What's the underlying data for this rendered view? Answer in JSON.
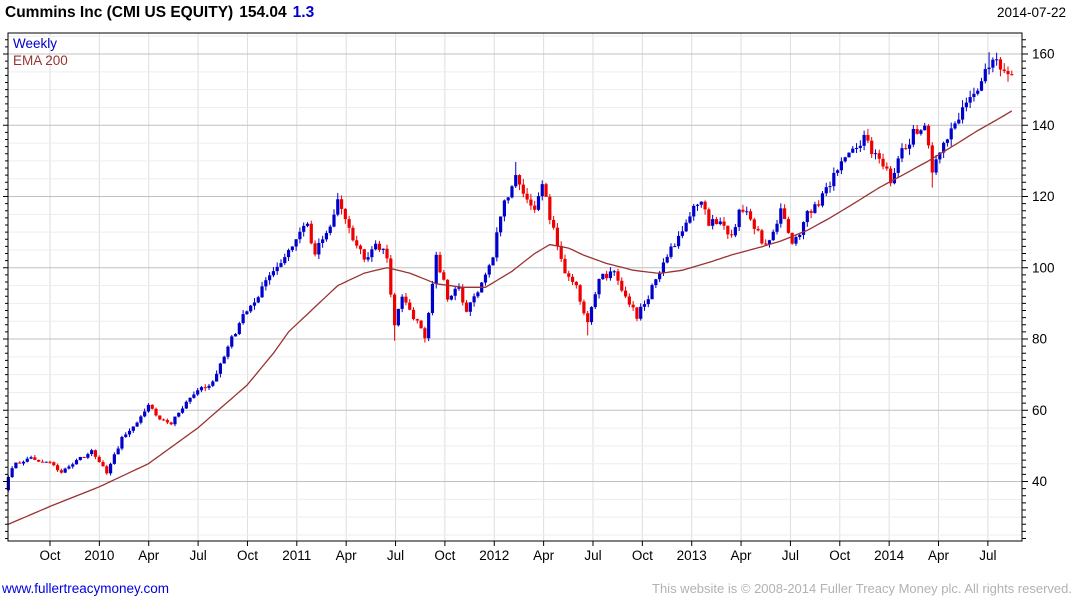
{
  "header": {
    "title": "Cummins Inc (CMI US EQUITY)",
    "price": "154.04",
    "change": "1.3",
    "date": "2014-07-22"
  },
  "legend": {
    "interval_label": "Weekly",
    "overlay_label": "EMA 200"
  },
  "footer": {
    "website": "www.fullertreacymoney.com",
    "copyright": "This website is © 2008-2014 Fuller Treacy Money plc. All rights reserved."
  },
  "colors": {
    "up_candle": "#0000cc",
    "down_candle": "#ee0000",
    "ema_line": "#993333",
    "grid_minor": "#ededed",
    "grid_major": "#c0c0c0",
    "grid_vertical": "#dedede",
    "axis": "#000000",
    "change_text": "#0000cc",
    "link": "#0000dd",
    "copyright_text": "#b2b2b2"
  },
  "chart_data": {
    "type": "candlestick",
    "interval": "Weekly",
    "overlay": "EMA 200",
    "title": "Cummins Inc (CMI US EQUITY)",
    "last_close": 154.04,
    "net_change": 1.3,
    "as_of_date": "2014-07-22",
    "x_tick_labels": [
      "Oct",
      "2010",
      "Apr",
      "Jul",
      "Oct",
      "2011",
      "Apr",
      "Jul",
      "Oct",
      "2012",
      "Apr",
      "Jul",
      "Oct",
      "2013",
      "Apr",
      "Jul",
      "Oct",
      "2014",
      "Apr",
      "Jul"
    ],
    "x_first_tick_week": 11,
    "x_weeks_per_tick": 13.036,
    "weeks_total": 266,
    "y_ticks": [
      40,
      60,
      80,
      100,
      120,
      140,
      160
    ],
    "y_minor_step": 5,
    "y_range_visible": [
      23,
      166
    ],
    "close_anchors": [
      [
        0,
        41.5
      ],
      [
        2,
        45
      ],
      [
        6,
        46.5
      ],
      [
        11,
        45.5
      ],
      [
        14,
        42.5
      ],
      [
        19,
        46.5
      ],
      [
        22,
        48.5
      ],
      [
        26,
        42.5
      ],
      [
        30,
        52
      ],
      [
        34,
        57
      ],
      [
        37,
        62
      ],
      [
        39,
        58
      ],
      [
        43,
        56.5
      ],
      [
        46,
        61
      ],
      [
        50,
        65
      ],
      [
        54,
        68
      ],
      [
        58,
        78
      ],
      [
        63,
        88
      ],
      [
        67,
        94
      ],
      [
        71,
        100
      ],
      [
        76,
        108
      ],
      [
        79,
        112
      ],
      [
        81,
        104
      ],
      [
        84,
        110
      ],
      [
        87,
        118.5
      ],
      [
        90,
        110
      ],
      [
        94,
        102
      ],
      [
        97,
        107
      ],
      [
        100,
        103
      ],
      [
        102,
        84
      ],
      [
        104,
        91
      ],
      [
        107,
        86
      ],
      [
        110,
        81
      ],
      [
        113,
        103
      ],
      [
        116,
        92
      ],
      [
        119,
        94
      ],
      [
        121,
        87.5
      ],
      [
        124,
        93
      ],
      [
        128,
        104
      ],
      [
        131,
        118
      ],
      [
        134,
        125
      ],
      [
        136,
        120
      ],
      [
        139,
        117
      ],
      [
        141,
        123
      ],
      [
        144,
        110
      ],
      [
        147,
        98
      ],
      [
        150,
        94
      ],
      [
        153,
        85
      ],
      [
        156,
        97
      ],
      [
        160,
        99
      ],
      [
        163,
        92
      ],
      [
        166,
        86
      ],
      [
        169,
        92
      ],
      [
        172,
        99
      ],
      [
        176,
        107
      ],
      [
        180,
        115
      ],
      [
        183,
        118
      ],
      [
        185,
        112
      ],
      [
        188,
        114
      ],
      [
        191,
        109
      ],
      [
        193,
        115.5
      ],
      [
        196,
        114
      ],
      [
        199,
        107
      ],
      [
        202,
        109
      ],
      [
        204,
        117
      ],
      [
        207,
        106
      ],
      [
        211,
        115
      ],
      [
        215,
        120
      ],
      [
        218,
        126
      ],
      [
        222,
        131
      ],
      [
        226,
        136
      ],
      [
        230,
        131
      ],
      [
        233,
        125
      ],
      [
        236,
        132
      ],
      [
        239,
        138
      ],
      [
        242,
        140
      ],
      [
        244,
        126
      ],
      [
        247,
        136
      ],
      [
        250,
        140
      ],
      [
        253,
        145
      ],
      [
        256,
        150
      ],
      [
        259,
        158
      ],
      [
        262,
        156
      ],
      [
        264,
        153.5
      ],
      [
        265,
        154.04
      ]
    ],
    "ema_anchors": [
      [
        0,
        28
      ],
      [
        11,
        33
      ],
      [
        24,
        38.5
      ],
      [
        37,
        45
      ],
      [
        50,
        55
      ],
      [
        63,
        67
      ],
      [
        70,
        76
      ],
      [
        74,
        82
      ],
      [
        80,
        88
      ],
      [
        87,
        95
      ],
      [
        94,
        98.5
      ],
      [
        100,
        100
      ],
      [
        106,
        98.5
      ],
      [
        113,
        95.5
      ],
      [
        120,
        94.5
      ],
      [
        126,
        94.5
      ],
      [
        133,
        99
      ],
      [
        139,
        104
      ],
      [
        143,
        106.5
      ],
      [
        148,
        105.5
      ],
      [
        152,
        103.5
      ],
      [
        158,
        101.2
      ],
      [
        165,
        99.3
      ],
      [
        172,
        98.4
      ],
      [
        178,
        99.3
      ],
      [
        185,
        101.5
      ],
      [
        191,
        103.6
      ],
      [
        198,
        105.6
      ],
      [
        204,
        107.5
      ],
      [
        211,
        110.5
      ],
      [
        217,
        114
      ],
      [
        224,
        118.5
      ],
      [
        230,
        122.5
      ],
      [
        237,
        126.5
      ],
      [
        243,
        130
      ],
      [
        250,
        134.5
      ],
      [
        256,
        138.5
      ],
      [
        261,
        141.5
      ],
      [
        265,
        144
      ]
    ],
    "low_wick_overrides": {
      "102": 79.5,
      "110": 79,
      "153": 81,
      "166": 85,
      "244": 122.5
    },
    "high_wick_overrides": {
      "87": 121,
      "134": 129.7,
      "226": 138.5,
      "259": 160.5
    }
  }
}
